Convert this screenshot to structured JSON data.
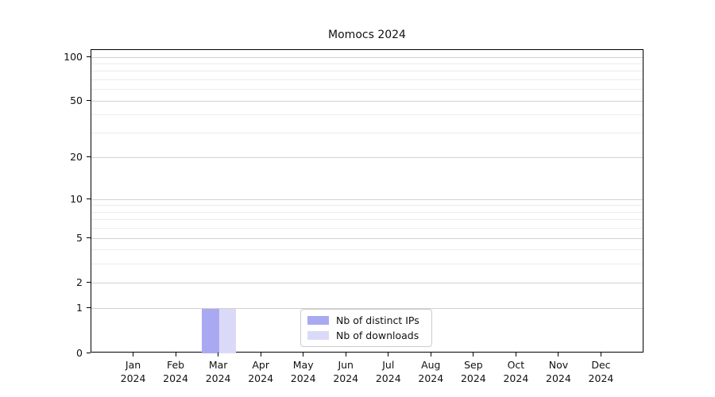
{
  "figure": {
    "title": "Momocs 2024"
  },
  "chart_data": {
    "type": "bar",
    "title": "Momocs 2024",
    "categories": [
      "Jan",
      "Feb",
      "Mar",
      "Apr",
      "May",
      "Jun",
      "Jul",
      "Aug",
      "Sep",
      "Oct",
      "Nov",
      "Dec"
    ],
    "category_year": "2024",
    "series": [
      {
        "name": "Nb of distinct IPs",
        "color": "#a9a9f2",
        "values": [
          0,
          0,
          1,
          0,
          0,
          0,
          0,
          0,
          0,
          0,
          0,
          0
        ]
      },
      {
        "name": "Nb of downloads",
        "color": "#dadaf8",
        "values": [
          0,
          0,
          1,
          0,
          0,
          0,
          0,
          0,
          0,
          0,
          0,
          0
        ]
      }
    ],
    "yscale": "log1p",
    "ylim": [
      0,
      112
    ],
    "yticks": [
      0,
      1,
      2,
      5,
      10,
      20,
      50,
      100
    ],
    "yticks_minor": [
      3,
      4,
      6,
      7,
      8,
      9,
      30,
      40,
      60,
      70,
      80,
      90
    ],
    "xlabel": "",
    "ylabel": "",
    "grid": true,
    "legend_position": "lower center",
    "colors": {
      "spine": "#000000",
      "major_grid": "#d2d2d2",
      "minor_grid": "#ebebeb",
      "background": "#ffffff"
    }
  }
}
